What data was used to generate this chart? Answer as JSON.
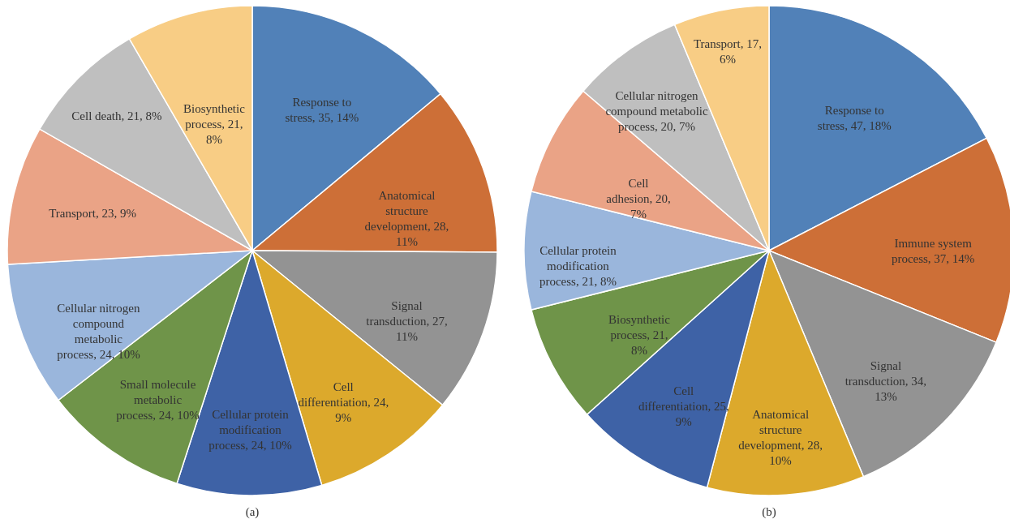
{
  "chart_data": [
    {
      "type": "pie",
      "title": "(a)",
      "categories": [
        "Response to stress",
        "Anatomical structure development",
        "Signal transduction",
        "Cell differentiation",
        "Cellular protein modification process",
        "Small molecule metabolic process",
        "Cellular nitrogen compound metabolic process",
        "Transport",
        "Cell death",
        "Biosynthetic process"
      ],
      "values": [
        35,
        28,
        27,
        24,
        24,
        24,
        24,
        23,
        21,
        21
      ],
      "value_labels": [
        "35, 14%",
        "28, 11%",
        "27, 11%",
        "24, 9%",
        "24, 10%",
        "24, 10%",
        "24, 10%",
        "23, 9%",
        "21, 8%",
        "21, 8%"
      ],
      "colors": [
        "#5181b8",
        "#cd6f37",
        "#939393",
        "#dca92c",
        "#3e62a6",
        "#6f9449",
        "#9ab6dc",
        "#eaa386",
        "#bfbfbf",
        "#f8cd85"
      ]
    },
    {
      "type": "pie",
      "title": "(b)",
      "categories": [
        "Response to stress",
        "Immune system process",
        "Signal transduction",
        "Anatomical structure development",
        "Cell differentiation",
        "Biosynthetic process",
        "Cellular protein modification process",
        "Cell adhesion",
        "Cellular nitrogen compound metabolic process",
        "Transport"
      ],
      "values": [
        47,
        37,
        34,
        28,
        25,
        21,
        21,
        20,
        20,
        17
      ],
      "value_labels": [
        "47, 18%",
        "37, 14%",
        "34, 13%",
        "28, 10%",
        "25, 9%",
        "21, 8%",
        "21, 8%",
        "20, 7%",
        "20, 7%",
        "17, 6%"
      ],
      "colors": [
        "#5181b8",
        "#cd6f37",
        "#939393",
        "#dca92c",
        "#3e62a6",
        "#6f9449",
        "#9ab6dc",
        "#eaa386",
        "#bfbfbf",
        "#f8cd85"
      ]
    }
  ]
}
